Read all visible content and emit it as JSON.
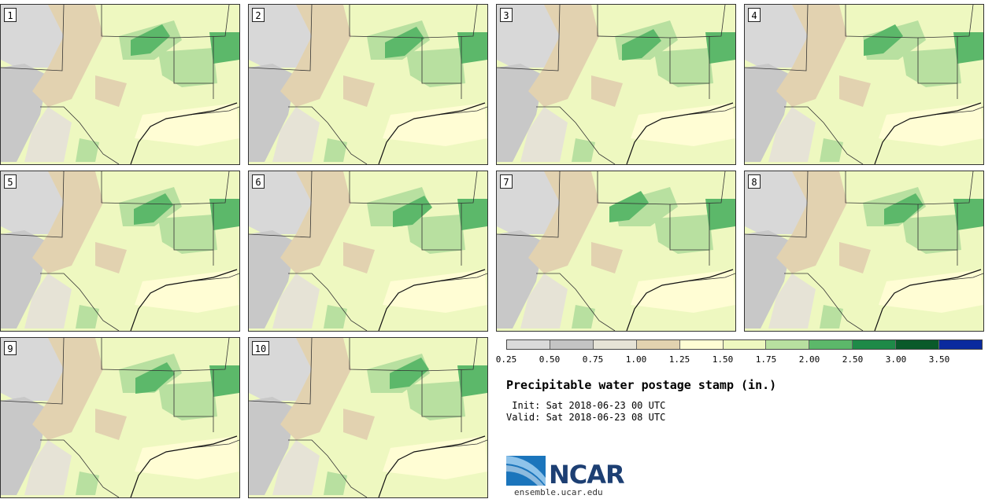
{
  "panels": [
    "1",
    "2",
    "3",
    "4",
    "5",
    "6",
    "7",
    "8",
    "9",
    "10"
  ],
  "colorbar": {
    "colors": [
      "#dadada",
      "#c4c4c4",
      "#e6e3d6",
      "#e2d2b0",
      "#fffdd4",
      "#eef8c0",
      "#b8e0a0",
      "#5cb86a",
      "#1e8a48",
      "#0a5a2a",
      "#0a2a9e"
    ],
    "ticks": [
      "0.25",
      "0.50",
      "0.75",
      "1.00",
      "1.25",
      "1.50",
      "1.75",
      "2.00",
      "2.50",
      "3.00",
      "3.50"
    ]
  },
  "title": "Precipitable water postage stamp (in.)",
  "init": " Init: Sat 2018-06-23 00 UTC",
  "valid": "Valid: Sat 2018-06-23 08 UTC",
  "logo": {
    "text": "NCAR",
    "url": "ensemble.ucar.edu"
  }
}
